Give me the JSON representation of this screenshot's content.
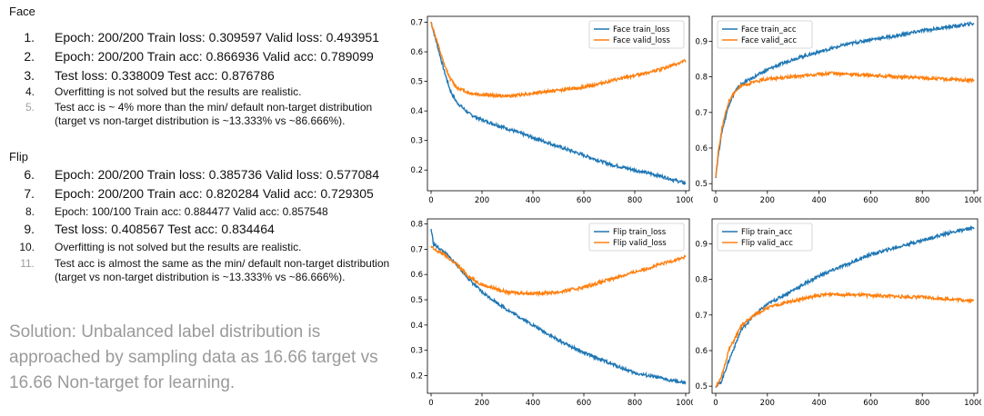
{
  "left": {
    "face_heading": "Face",
    "flip_heading": "Flip",
    "items": [
      {
        "n": "1.",
        "text": "Epoch: 200/200 Train loss: 0.309597 Valid loss: 0.493951"
      },
      {
        "n": "2.",
        "text": "Epoch: 200/200 Train acc: 0.866936 Valid acc: 0.789099"
      },
      {
        "n": "3.",
        "text": "Test loss: 0.338009 Test acc: 0.876786"
      },
      {
        "n": "4.",
        "text": "Overfitting is not solved but the results are realistic."
      },
      {
        "n": "5.",
        "text": "Test acc is ~ 4% more than the min/ default non-target distribution (target vs non-target distribution is ~13.333% vs ~86.666%)."
      },
      {
        "n": "6.",
        "text": "Epoch: 200/200 Train loss: 0.385736 Valid loss: 0.577084"
      },
      {
        "n": "7.",
        "text": "Epoch: 200/200 Train acc: 0.820284 Valid acc: 0.729305"
      },
      {
        "n": "8.",
        "text": "Epoch: 100/100 Train acc: 0.884477 Valid acc: 0.857548"
      },
      {
        "n": "9.",
        "text": "Test loss: 0.408567 Test acc: 0.834464"
      },
      {
        "n": "10.",
        "text": "Overfitting is not solved but the results are realistic."
      },
      {
        "n": "11.",
        "text": "Test acc is almost the same as the min/ default non-target distribution (target vs non-target distribution is ~13.333% vs ~86.666%)."
      }
    ],
    "solution": "Solution: Unbalanced label distribution is approached by sampling data as 16.66 target vs 16.66 Non-target for learning."
  },
  "colors": {
    "train": "#1f77b4",
    "valid": "#ff7f0e"
  },
  "chart_data": [
    {
      "type": "line",
      "xlim": [
        0,
        1000
      ],
      "ylim": [
        0.13,
        0.72
      ],
      "xticks": [
        0,
        200,
        400,
        600,
        800,
        1000
      ],
      "yticks": [
        0.2,
        0.3,
        0.4,
        0.5,
        0.6,
        0.7
      ],
      "legend_position": "top-right",
      "series": [
        {
          "name": "Face train_loss",
          "x": [
            0,
            25,
            50,
            75,
            100,
            150,
            200,
            300,
            400,
            500,
            600,
            700,
            800,
            900,
            1000
          ],
          "values": [
            0.7,
            0.62,
            0.54,
            0.47,
            0.43,
            0.39,
            0.37,
            0.34,
            0.31,
            0.28,
            0.25,
            0.22,
            0.2,
            0.18,
            0.155
          ]
        },
        {
          "name": "Face valid_loss",
          "x": [
            0,
            25,
            50,
            75,
            100,
            150,
            200,
            300,
            400,
            500,
            600,
            700,
            800,
            900,
            1000
          ],
          "values": [
            0.7,
            0.63,
            0.56,
            0.51,
            0.48,
            0.46,
            0.455,
            0.45,
            0.46,
            0.47,
            0.48,
            0.5,
            0.52,
            0.54,
            0.57
          ]
        }
      ]
    },
    {
      "type": "line",
      "xlim": [
        0,
        1000
      ],
      "ylim": [
        0.48,
        0.97
      ],
      "xticks": [
        0,
        200,
        400,
        600,
        800,
        1000
      ],
      "yticks": [
        0.5,
        0.6,
        0.7,
        0.8,
        0.9
      ],
      "legend_position": "top-left",
      "series": [
        {
          "name": "Face train_acc",
          "x": [
            0,
            10,
            25,
            50,
            75,
            100,
            150,
            200,
            300,
            400,
            500,
            600,
            700,
            800,
            900,
            1000
          ],
          "values": [
            0.52,
            0.58,
            0.65,
            0.72,
            0.76,
            0.78,
            0.8,
            0.82,
            0.85,
            0.87,
            0.89,
            0.905,
            0.915,
            0.93,
            0.94,
            0.95
          ]
        },
        {
          "name": "Face valid_acc",
          "x": [
            0,
            10,
            25,
            50,
            75,
            100,
            150,
            200,
            300,
            400,
            450,
            500,
            600,
            700,
            800,
            900,
            1000
          ],
          "values": [
            0.52,
            0.59,
            0.66,
            0.73,
            0.76,
            0.775,
            0.785,
            0.795,
            0.8,
            0.807,
            0.81,
            0.808,
            0.805,
            0.8,
            0.797,
            0.793,
            0.79
          ]
        }
      ]
    },
    {
      "type": "line",
      "xlim": [
        0,
        1000
      ],
      "ylim": [
        0.13,
        0.82
      ],
      "xticks": [
        0,
        200,
        400,
        600,
        800,
        1000
      ],
      "yticks": [
        0.2,
        0.3,
        0.4,
        0.5,
        0.6,
        0.7,
        0.8
      ],
      "legend_position": "top-right",
      "series": [
        {
          "name": "Flip train_loss",
          "x": [
            0,
            10,
            50,
            100,
            150,
            200,
            300,
            400,
            500,
            600,
            700,
            800,
            900,
            1000
          ],
          "values": [
            0.78,
            0.72,
            0.69,
            0.64,
            0.58,
            0.53,
            0.46,
            0.4,
            0.34,
            0.29,
            0.25,
            0.21,
            0.19,
            0.17
          ]
        },
        {
          "name": "Flip valid_loss",
          "x": [
            0,
            10,
            50,
            100,
            150,
            200,
            300,
            400,
            500,
            600,
            700,
            800,
            900,
            1000
          ],
          "values": [
            0.71,
            0.7,
            0.68,
            0.64,
            0.59,
            0.56,
            0.53,
            0.525,
            0.53,
            0.55,
            0.58,
            0.61,
            0.64,
            0.67
          ]
        }
      ]
    },
    {
      "type": "line",
      "xlim": [
        0,
        1000
      ],
      "ylim": [
        0.48,
        0.97
      ],
      "xticks": [
        0,
        200,
        400,
        600,
        800,
        1000
      ],
      "yticks": [
        0.5,
        0.6,
        0.7,
        0.8,
        0.9
      ],
      "legend_position": "top-left",
      "series": [
        {
          "name": "Flip train_acc",
          "x": [
            0,
            20,
            50,
            100,
            150,
            200,
            300,
            400,
            500,
            600,
            700,
            800,
            900,
            1000
          ],
          "values": [
            0.5,
            0.51,
            0.57,
            0.66,
            0.7,
            0.73,
            0.77,
            0.81,
            0.84,
            0.87,
            0.89,
            0.91,
            0.93,
            0.945
          ]
        },
        {
          "name": "Flip valid_acc",
          "x": [
            0,
            20,
            50,
            100,
            150,
            200,
            300,
            400,
            460,
            500,
            600,
            700,
            800,
            900,
            1000
          ],
          "values": [
            0.5,
            0.52,
            0.6,
            0.67,
            0.7,
            0.72,
            0.74,
            0.755,
            0.76,
            0.757,
            0.755,
            0.752,
            0.75,
            0.745,
            0.74
          ]
        }
      ]
    }
  ]
}
